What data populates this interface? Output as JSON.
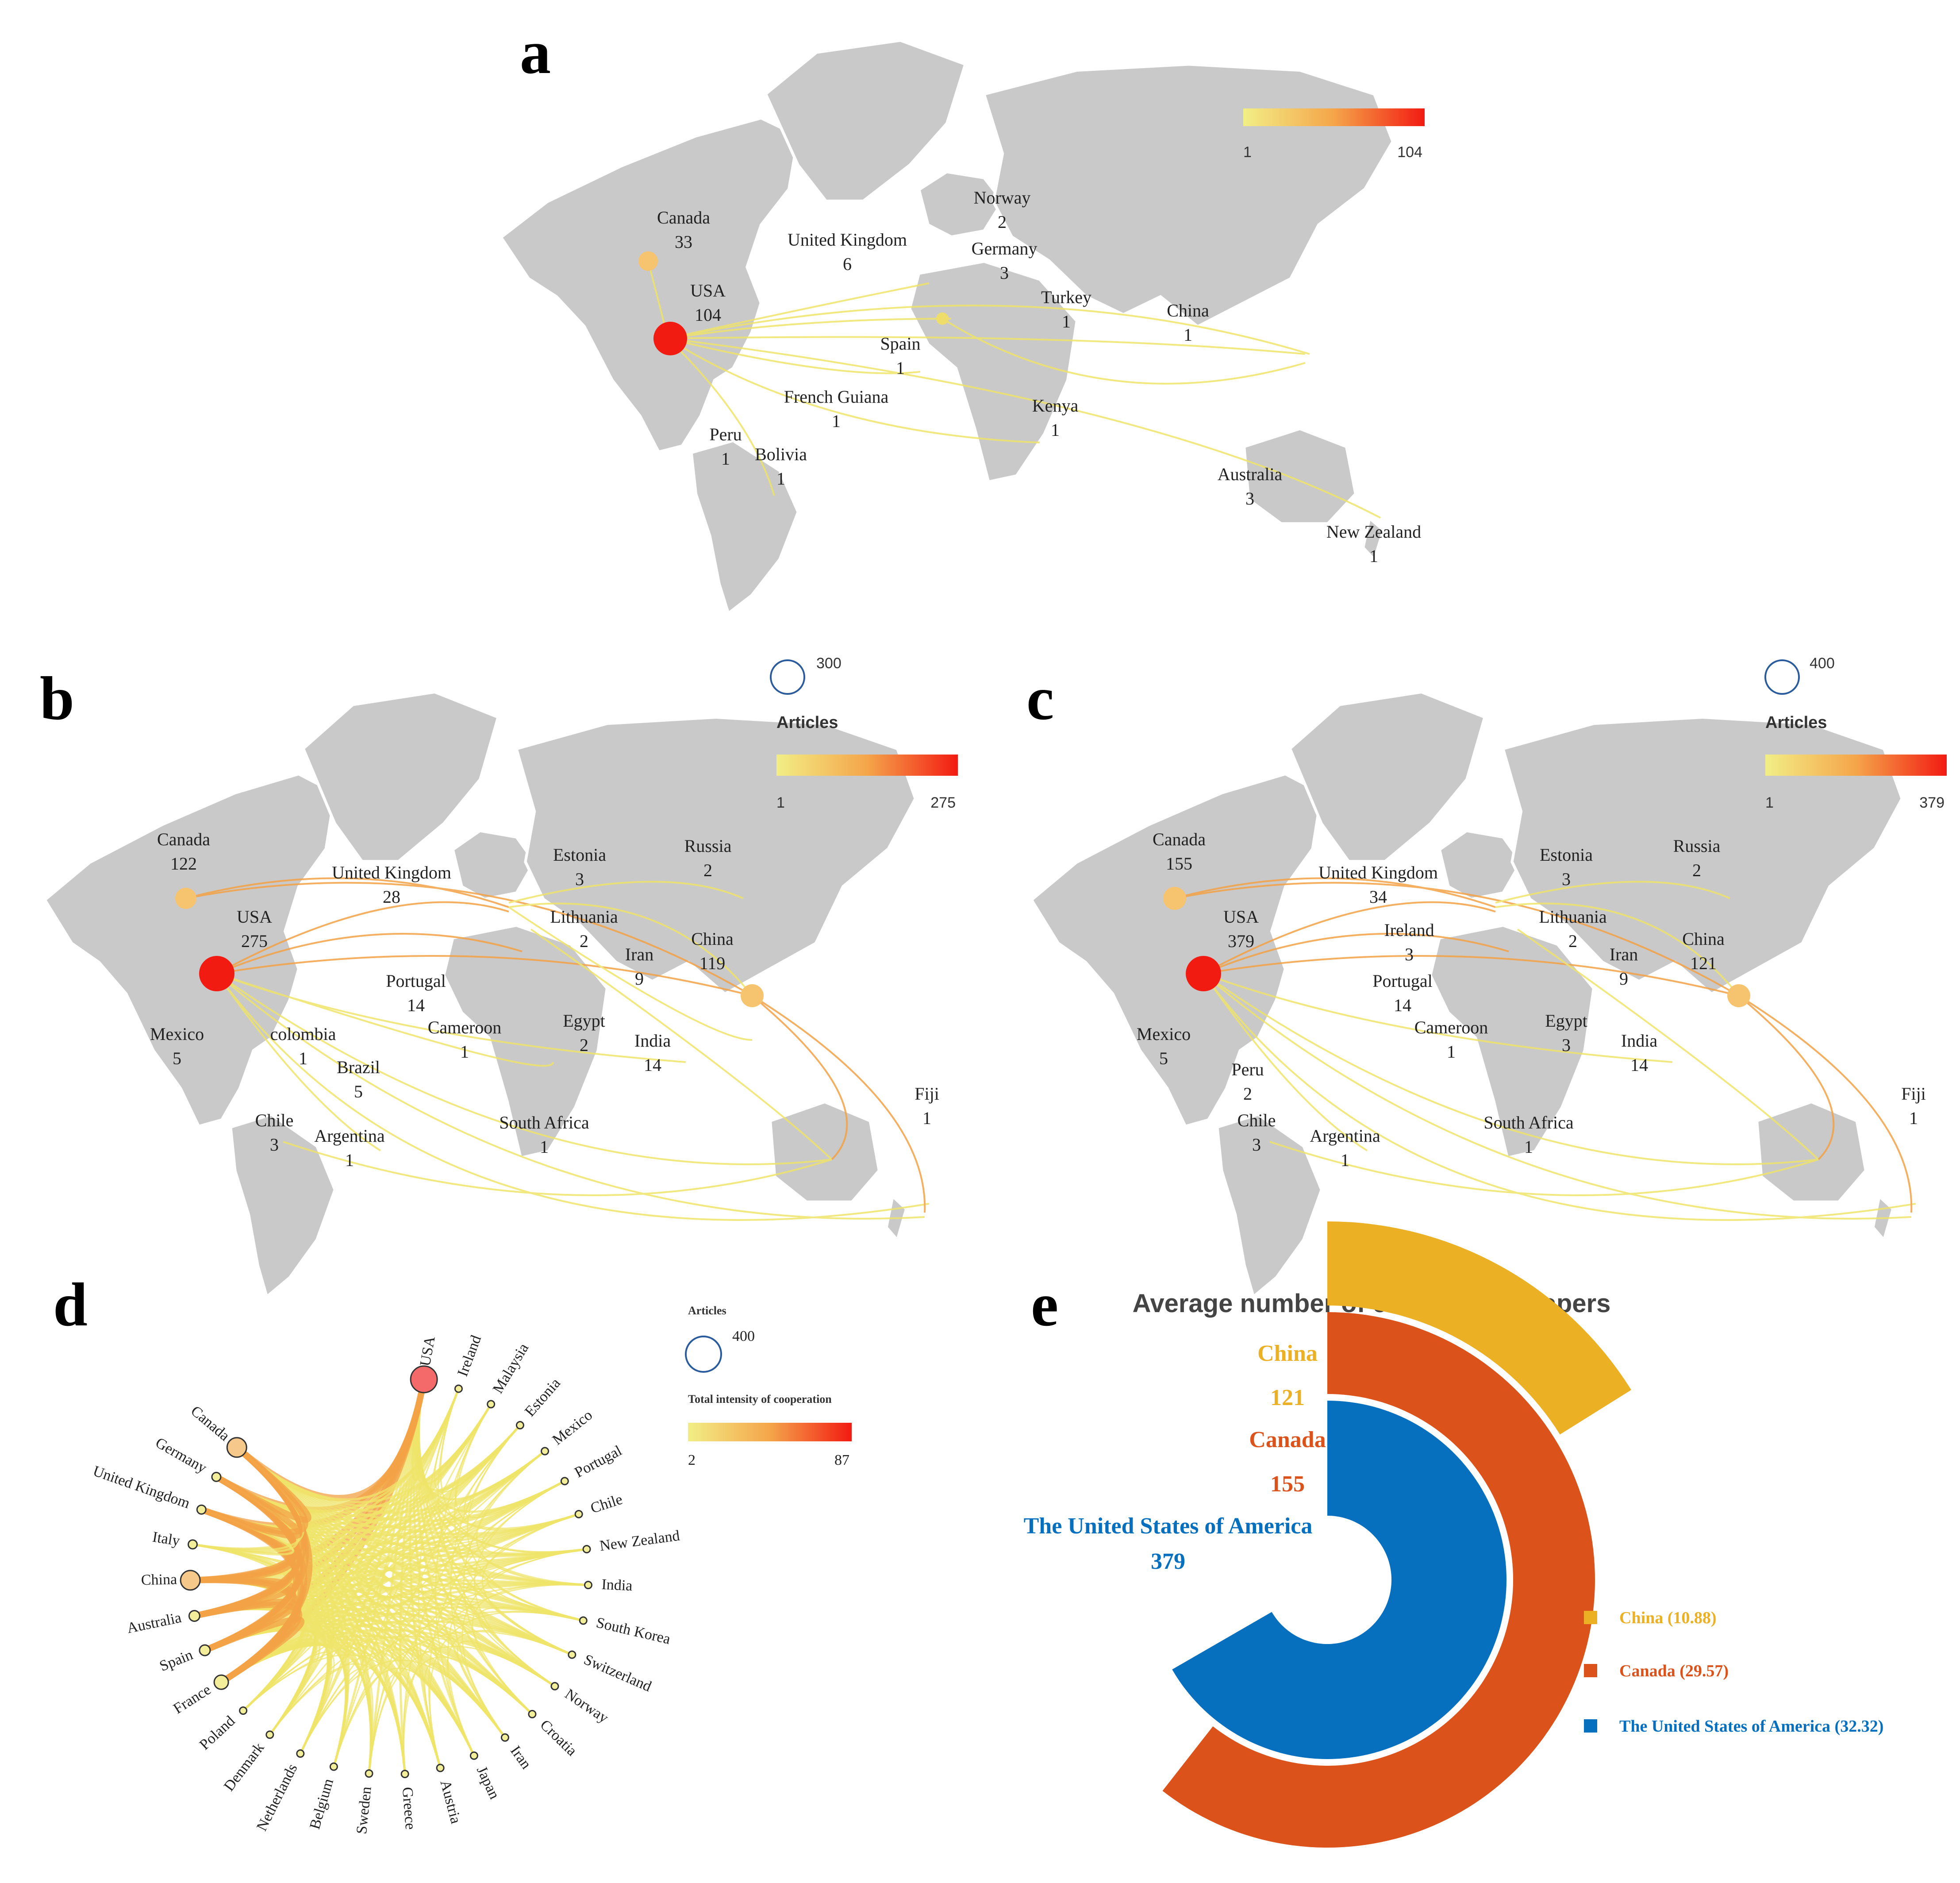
{
  "colors": {
    "land": "#c9c9c9",
    "scale_low": "#f0ec7a",
    "scale_mid": "#f5a54a",
    "scale_high": "#f21b12",
    "usa_node": "#f21b12",
    "circle_legend": "#2a5b9c",
    "e_china": "#ebb023",
    "e_canada": "#db531b",
    "e_usa": "#0670bf"
  },
  "panels": {
    "a": {
      "letter": "a",
      "scale_min": "1",
      "scale_max": "104",
      "countries": [
        {
          "name": "Canada",
          "value": "33"
        },
        {
          "name": "USA",
          "value": "104"
        },
        {
          "name": "United Kingdom",
          "value": "6"
        },
        {
          "name": "Norway",
          "value": "2"
        },
        {
          "name": "Germany",
          "value": "3"
        },
        {
          "name": "Turkey",
          "value": "1"
        },
        {
          "name": "China",
          "value": "1"
        },
        {
          "name": "Spain",
          "value": "1"
        },
        {
          "name": "French Guiana",
          "value": "1"
        },
        {
          "name": "Kenya",
          "value": "1"
        },
        {
          "name": "Peru",
          "value": "1"
        },
        {
          "name": "Bolivia",
          "value": "1"
        },
        {
          "name": "Australia",
          "value": "3"
        },
        {
          "name": "New Zealand",
          "value": "1"
        }
      ]
    },
    "b": {
      "letter": "b",
      "circle_value": "300",
      "legend_title": "Articles",
      "scale_min": "1",
      "scale_max": "275",
      "countries": [
        {
          "name": "Canada",
          "value": "122"
        },
        {
          "name": "United Kingdom",
          "value": "28"
        },
        {
          "name": "Estonia",
          "value": "3"
        },
        {
          "name": "Russia",
          "value": "2"
        },
        {
          "name": "USA",
          "value": "275"
        },
        {
          "name": "Lithuania",
          "value": "2"
        },
        {
          "name": "China",
          "value": "119"
        },
        {
          "name": "Iran",
          "value": "9"
        },
        {
          "name": "Portugal",
          "value": "14"
        },
        {
          "name": "Mexico",
          "value": "5"
        },
        {
          "name": "colombia",
          "value": "1"
        },
        {
          "name": "Cameroon",
          "value": "1"
        },
        {
          "name": "Egypt",
          "value": "2"
        },
        {
          "name": "India",
          "value": "14"
        },
        {
          "name": "Brazil",
          "value": "5"
        },
        {
          "name": "Chile",
          "value": "3"
        },
        {
          "name": "Argentina",
          "value": "1"
        },
        {
          "name": "South Africa",
          "value": "1"
        },
        {
          "name": "Fiji",
          "value": "1"
        }
      ]
    },
    "c": {
      "letter": "c",
      "circle_value": "400",
      "legend_title": "Articles",
      "scale_min": "1",
      "scale_max": "379",
      "countries": [
        {
          "name": "Canada",
          "value": "155"
        },
        {
          "name": "United Kingdom",
          "value": "34"
        },
        {
          "name": "Estonia",
          "value": "3"
        },
        {
          "name": "Russia",
          "value": "2"
        },
        {
          "name": "USA",
          "value": "379"
        },
        {
          "name": "Ireland",
          "value": "3"
        },
        {
          "name": "Lithuania",
          "value": "2"
        },
        {
          "name": "China",
          "value": "121"
        },
        {
          "name": "Iran",
          "value": "9"
        },
        {
          "name": "Portugal",
          "value": "14"
        },
        {
          "name": "Mexico",
          "value": "5"
        },
        {
          "name": "Peru",
          "value": "2"
        },
        {
          "name": "Cameroon",
          "value": "1"
        },
        {
          "name": "Egypt",
          "value": "3"
        },
        {
          "name": "India",
          "value": "14"
        },
        {
          "name": "Chile",
          "value": "3"
        },
        {
          "name": "Argentina",
          "value": "1"
        },
        {
          "name": "South Africa",
          "value": "1"
        },
        {
          "name": "Fiji",
          "value": "1"
        }
      ]
    },
    "d": {
      "letter": "d",
      "legend_articles": "Articles",
      "circle_value": "400",
      "legend_intensity": "Total intensity of cooperation",
      "scale_min": "2",
      "scale_max": "87",
      "nodes": [
        "USA",
        "Ireland",
        "Malaysia",
        "Estonia",
        "Mexico",
        "Portugal",
        "Chile",
        "New Zealand",
        "India",
        "South Korea",
        "Switzerland",
        "Norway",
        "Croatia",
        "Iran",
        "Japan",
        "Austria",
        "Greece",
        "Sweden",
        "Belgium",
        "Netherlands",
        "Denmark",
        "Poland",
        "France",
        "Spain",
        "Australia",
        "China",
        "Italy",
        "United Kingdom",
        "Germany",
        "Canada"
      ]
    },
    "e": {
      "letter": "e",
      "title": "Average number of citations for  papers",
      "labels": [
        {
          "name": "China",
          "value": "121"
        },
        {
          "name": "Canada",
          "value": "155"
        },
        {
          "name": "The United States of America",
          "value": "379"
        }
      ],
      "legend": [
        "China (10.88)",
        "Canada (29.57)",
        "The United States of America (32.32)"
      ]
    }
  },
  "chart_data": {
    "type": "bar",
    "title": "Average number of citations for  papers",
    "categories": [
      "China",
      "Canada",
      "The United States of America"
    ],
    "series": [
      {
        "name": "Articles",
        "values": [
          121,
          155,
          379
        ]
      },
      {
        "name": "Average citations",
        "values": [
          10.88,
          29.57,
          32.32
        ]
      }
    ]
  }
}
